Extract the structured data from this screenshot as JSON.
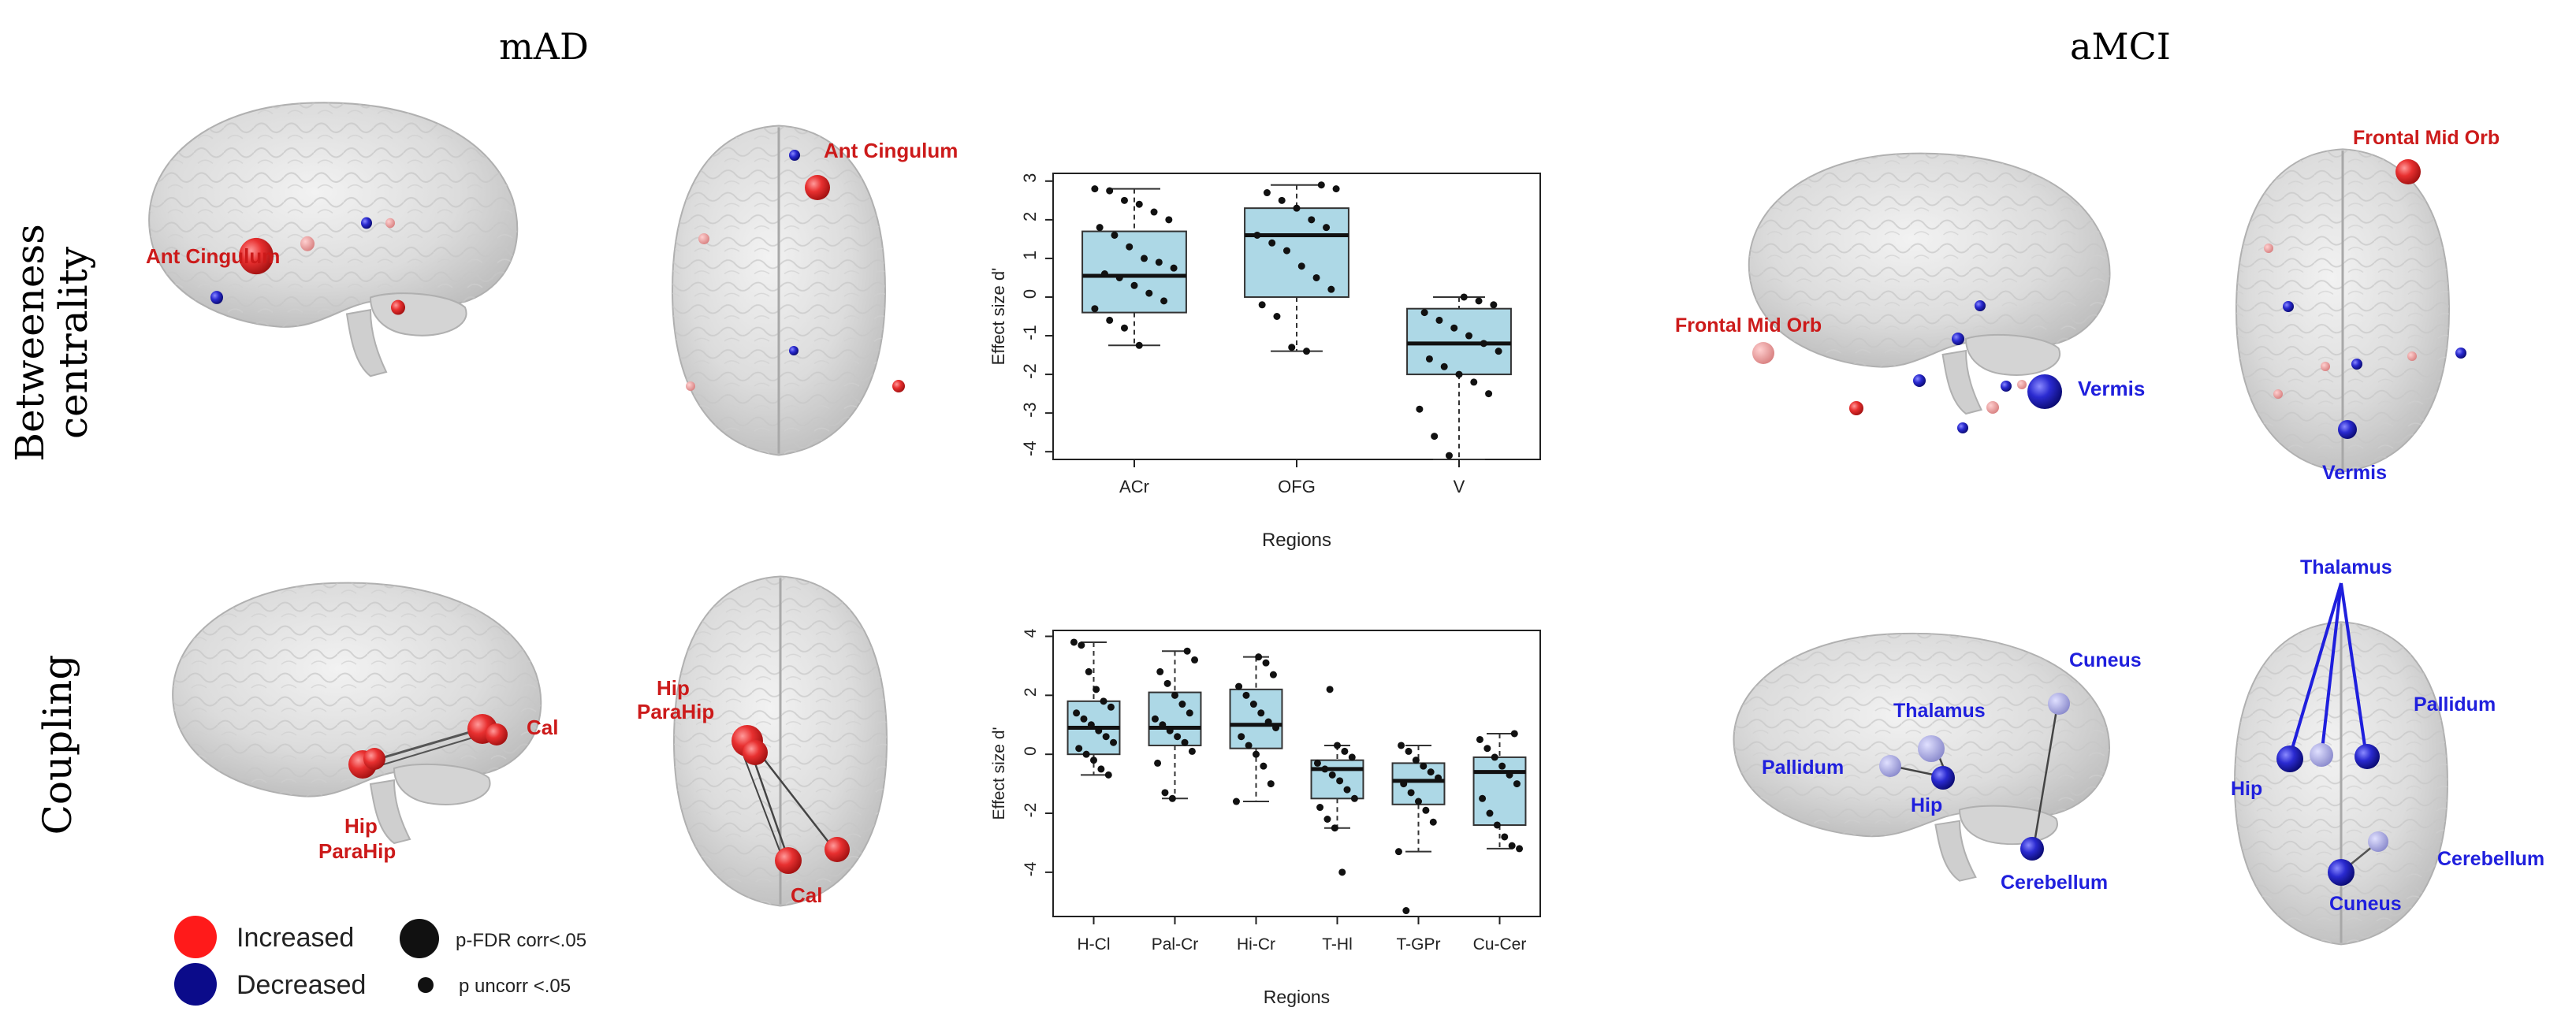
{
  "panel_titles": {
    "mad": "mAD",
    "amci": "aMCI"
  },
  "row_labels": {
    "betweenness": [
      "Betweeness",
      "centrality"
    ],
    "coupling": "Coupling"
  },
  "legend": {
    "increased": "Increased",
    "decreased": "Decreased",
    "fdr": "p-FDR corr<.05",
    "uncorr": "p uncorr <.05",
    "colors": {
      "increased": "#ff1a1a",
      "decreased": "#0b0b8a"
    }
  },
  "brain_labels": {
    "mad_bc_lat": "Ant Cingulum",
    "mad_bc_axial": "Ant Cingulum",
    "mad_cp_lat_cal": "Cal",
    "mad_cp_lat_hip": "Hip",
    "mad_cp_lat_parahip": "ParaHip",
    "mad_cp_ax_hip": "Hip",
    "mad_cp_ax_parahip": "ParaHip",
    "mad_cp_ax_cal": "Cal",
    "amci_bc_lat_frontal": "Frontal Mid Orb",
    "amci_bc_lat_vermis": "Vermis",
    "amci_bc_ax_frontal": "Frontal Mid Orb",
    "amci_bc_ax_vermis": "Vermis",
    "amci_cp_lat_cuneus": "Cuneus",
    "amci_cp_lat_thalamus": "Thalamus",
    "amci_cp_lat_pallidum": "Pallidum",
    "amci_cp_lat_hip": "Hip",
    "amci_cp_lat_cerebellum": "Cerebellum",
    "amci_cp_ax_thalamus": "Thalamus",
    "amci_cp_ax_pallidum": "Pallidum",
    "amci_cp_ax_hip": "Hip",
    "amci_cp_ax_cerebellum": "Cerebellum",
    "amci_cp_ax_cuneus": "Cuneus"
  },
  "chart_data": [
    {
      "type": "box",
      "title": "",
      "xlabel": "Regions",
      "ylabel": "Effect size d'",
      "ylim": [
        -4.2,
        3.2
      ],
      "yticks": [
        3,
        2,
        1,
        0,
        -1,
        -2,
        -3,
        -4
      ],
      "categories": [
        "ACr",
        "OFG",
        "V"
      ],
      "boxes": [
        {
          "category": "ACr",
          "whisker_low": -1.25,
          "q1": -0.4,
          "median": 0.55,
          "q3": 1.7,
          "whisker_high": 2.8,
          "points": [
            2.8,
            2.75,
            2.5,
            2.4,
            2.2,
            2.0,
            1.8,
            1.6,
            1.3,
            1.0,
            0.9,
            0.75,
            0.6,
            0.5,
            0.3,
            0.1,
            -0.1,
            -0.3,
            -0.6,
            -0.8,
            -1.25
          ]
        },
        {
          "category": "OFG",
          "whisker_low": -1.4,
          "q1": 0.0,
          "median": 1.6,
          "q3": 2.3,
          "whisker_high": 2.9,
          "points": [
            2.9,
            2.8,
            2.7,
            2.5,
            2.3,
            2.0,
            1.8,
            1.6,
            1.4,
            1.2,
            0.8,
            0.5,
            0.2,
            -0.2,
            -0.5,
            -1.3,
            -1.4
          ]
        },
        {
          "category": "V",
          "whisker_low": -4.2,
          "q1": -2.0,
          "median": -1.2,
          "q3": -0.3,
          "whisker_high": 0.0,
          "points": [
            0.0,
            -0.1,
            -0.2,
            -0.4,
            -0.6,
            -0.8,
            -1.0,
            -1.2,
            -1.4,
            -1.6,
            -1.8,
            -2.0,
            -2.2,
            -2.5,
            -2.9,
            -3.6,
            -4.1
          ]
        }
      ]
    },
    {
      "type": "box",
      "title": "",
      "xlabel": "Regions",
      "ylabel": "Effect size d'",
      "ylim": [
        -5.5,
        4.2
      ],
      "yticks": [
        4,
        2,
        0,
        -2,
        -4
      ],
      "categories": [
        "H-Cl",
        "Pal-Cr",
        "Hi-Cr",
        "T-Hl",
        "T-GPr",
        "Cu-Cer"
      ],
      "boxes": [
        {
          "category": "H-Cl",
          "whisker_low": -0.7,
          "q1": 0.0,
          "median": 0.9,
          "q3": 1.8,
          "whisker_high": 3.8,
          "points": [
            3.8,
            3.7,
            2.8,
            2.2,
            1.8,
            1.6,
            1.4,
            1.2,
            1.0,
            0.8,
            0.6,
            0.4,
            0.2,
            0.0,
            -0.2,
            -0.5,
            -0.7
          ]
        },
        {
          "category": "Pal-Cr",
          "whisker_low": -1.5,
          "q1": 0.3,
          "median": 0.9,
          "q3": 2.1,
          "whisker_high": 3.5,
          "points": [
            3.5,
            3.2,
            2.8,
            2.4,
            2.0,
            1.7,
            1.4,
            1.2,
            1.0,
            0.8,
            0.6,
            0.4,
            0.1,
            -0.3,
            -1.3,
            -1.5
          ]
        },
        {
          "category": "Hi-Cr",
          "whisker_low": -1.6,
          "q1": 0.2,
          "median": 1.0,
          "q3": 2.2,
          "whisker_high": 3.3,
          "points": [
            3.3,
            3.1,
            2.7,
            2.3,
            2.0,
            1.7,
            1.4,
            1.1,
            0.9,
            0.6,
            0.3,
            0.0,
            -0.4,
            -1.0,
            -1.6
          ]
        },
        {
          "category": "T-Hl",
          "whisker_low": -2.5,
          "q1": -1.5,
          "median": -0.5,
          "q3": -0.2,
          "whisker_high": 0.3,
          "points": [
            2.2,
            0.3,
            0.1,
            -0.1,
            -0.3,
            -0.5,
            -0.7,
            -0.9,
            -1.2,
            -1.5,
            -1.8,
            -2.2,
            -2.5,
            -4.0
          ]
        },
        {
          "category": "T-GPr",
          "whisker_low": -3.3,
          "q1": -1.7,
          "median": -0.9,
          "q3": -0.3,
          "whisker_high": 0.3,
          "points": [
            0.3,
            0.1,
            -0.2,
            -0.4,
            -0.6,
            -0.8,
            -1.0,
            -1.3,
            -1.6,
            -1.9,
            -2.3,
            -3.3,
            -5.3
          ]
        },
        {
          "category": "Cu-Cer",
          "whisker_low": -3.2,
          "q1": -2.4,
          "median": -0.6,
          "q3": -0.1,
          "whisker_high": 0.7,
          "points": [
            0.7,
            0.5,
            0.2,
            -0.1,
            -0.4,
            -0.7,
            -1.0,
            -1.5,
            -2.0,
            -2.4,
            -2.8,
            -3.1,
            -3.2
          ]
        }
      ]
    }
  ]
}
